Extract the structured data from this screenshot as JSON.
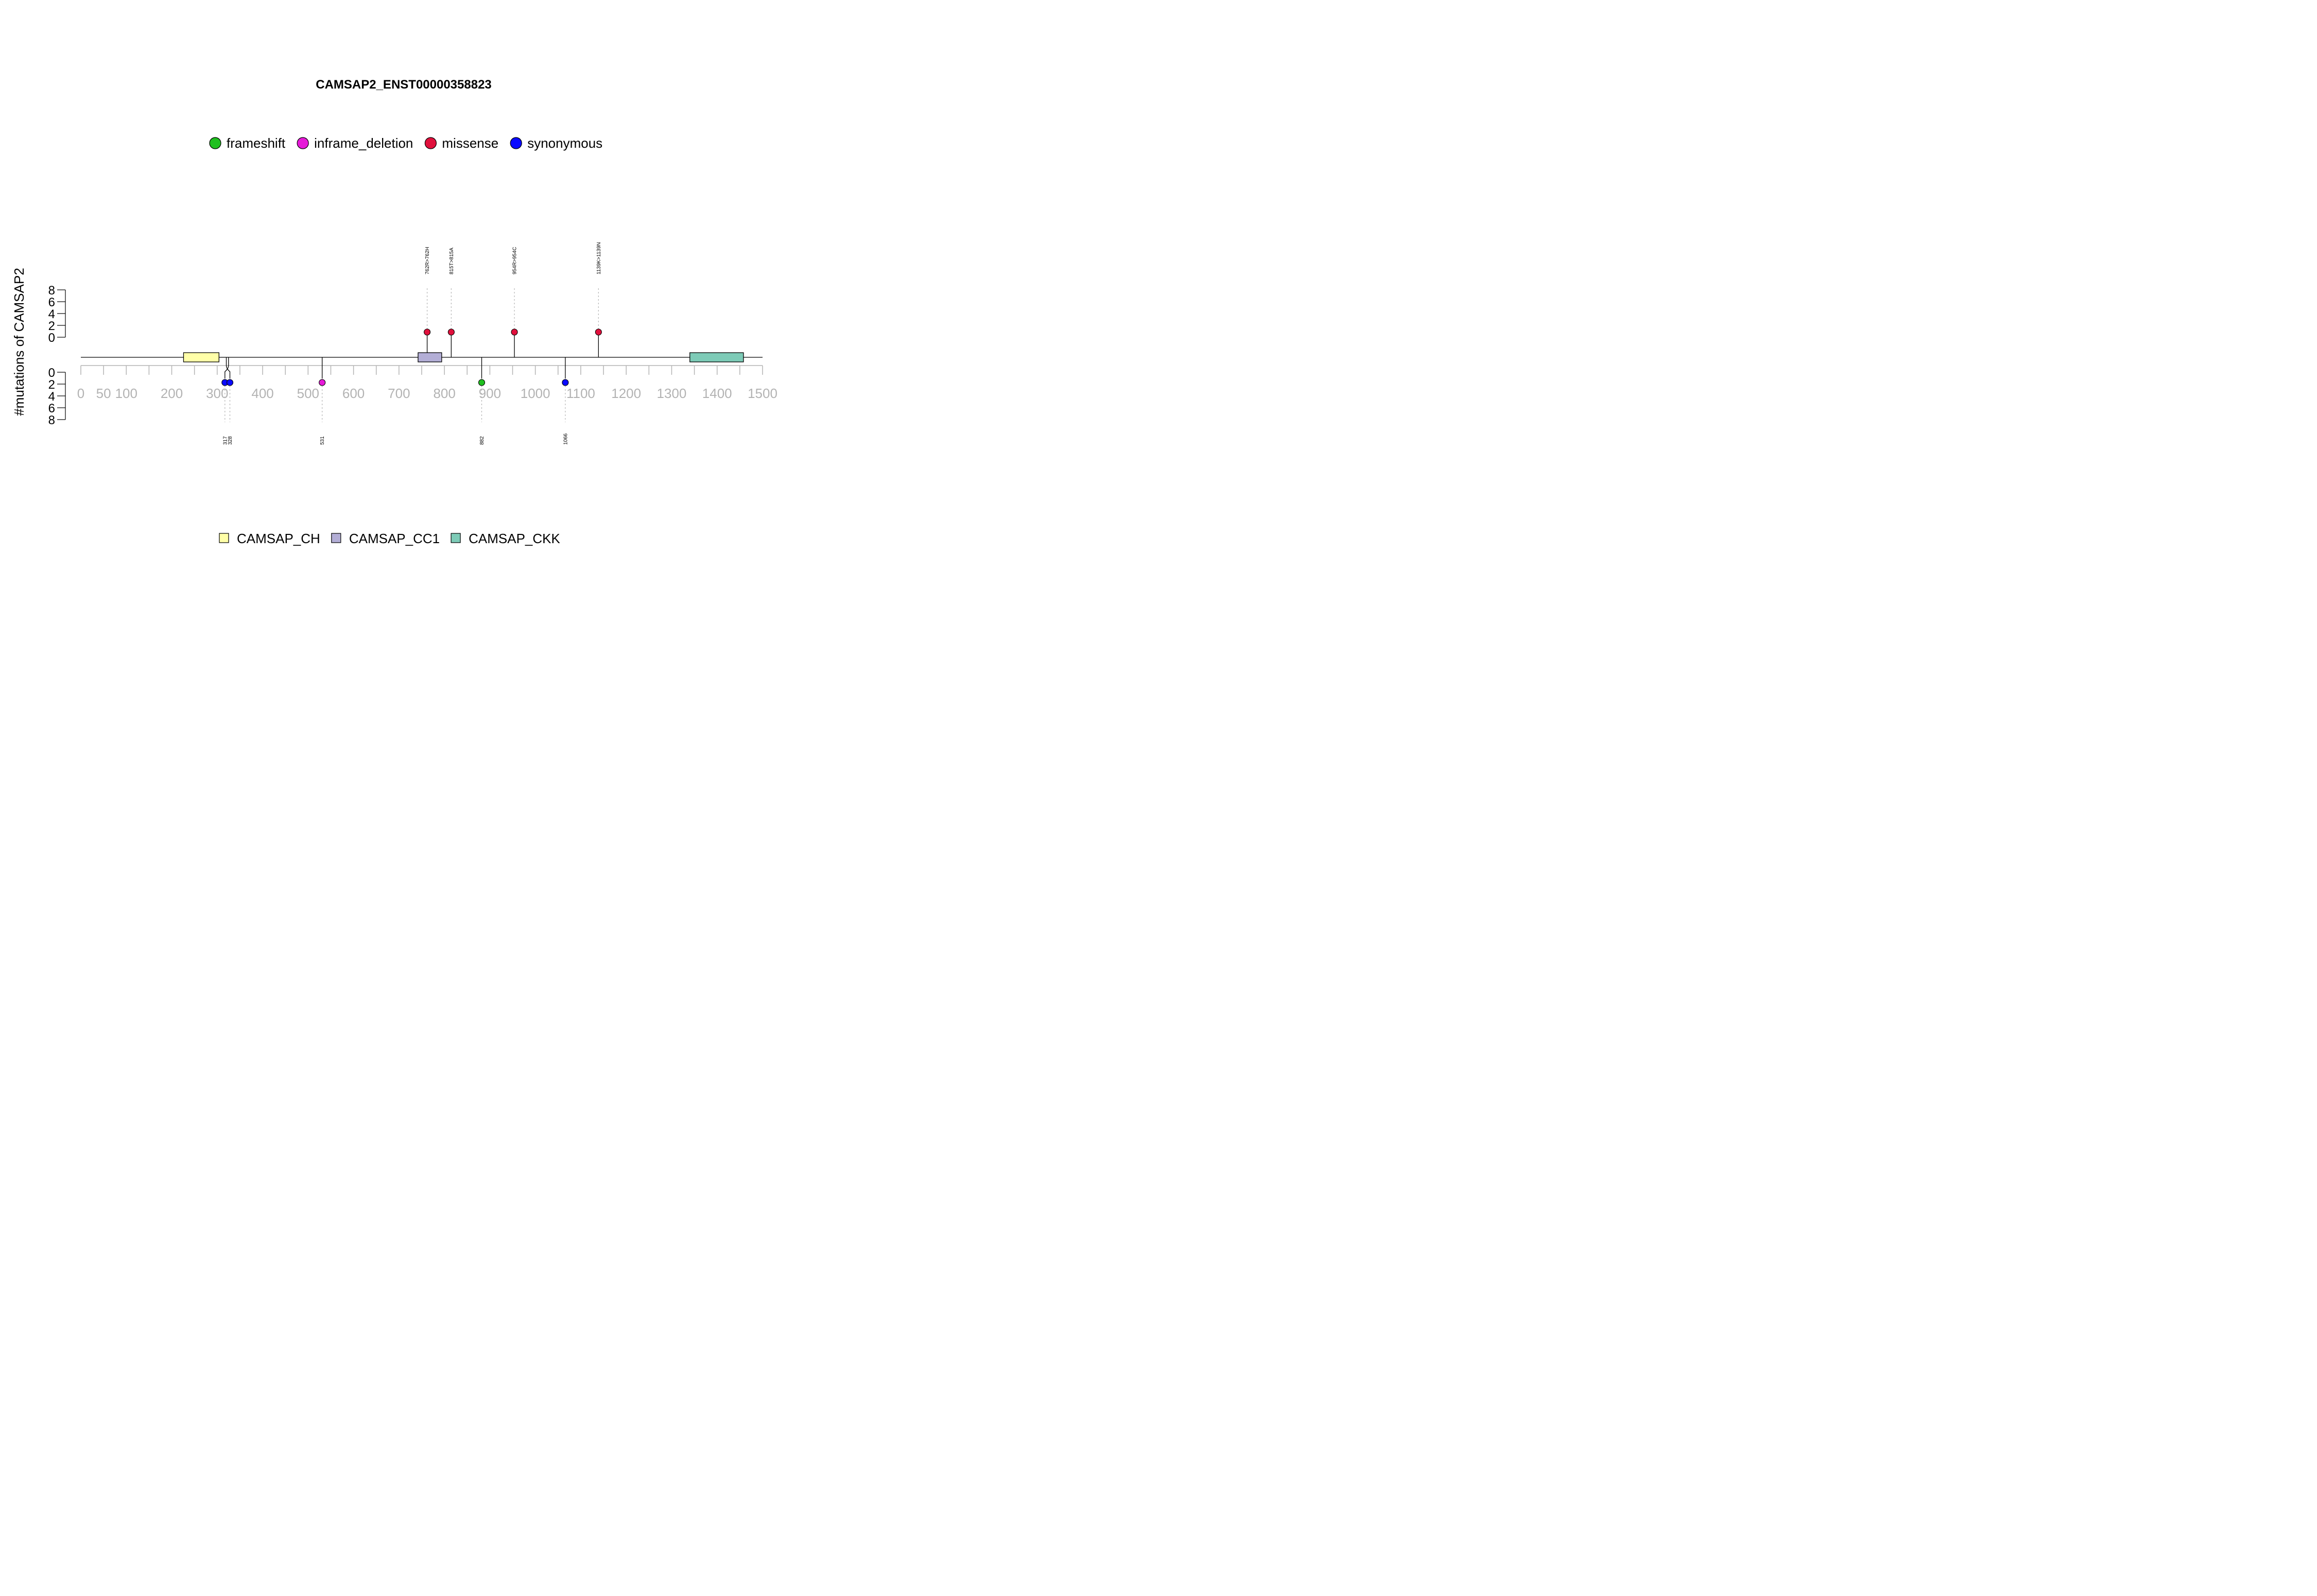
{
  "chart_data": {
    "type": "lollipop",
    "title": "CAMSAP2_ENST00000358823",
    "ylabel": "#mutations of CAMSAP2",
    "xlim": [
      0,
      1500
    ],
    "x_ticks": [
      0,
      50,
      100,
      200,
      300,
      400,
      500,
      600,
      700,
      800,
      900,
      1000,
      1100,
      1200,
      1300,
      1400,
      1500
    ],
    "y_ticks": [
      0,
      2,
      4,
      6,
      8
    ],
    "ylim": [
      0,
      8
    ],
    "mutation_legend": [
      {
        "name": "frameshift",
        "color": "#1fbf1f"
      },
      {
        "name": "inframe_deletion",
        "color": "#e61ad8"
      },
      {
        "name": "missense",
        "color": "#e0103c"
      },
      {
        "name": "synonymous",
        "color": "#0a0aff"
      }
    ],
    "domain_legend": [
      {
        "name": "CAMSAP_CH",
        "color": "#ffffa8"
      },
      {
        "name": "CAMSAP_CC1",
        "color": "#b3aed6"
      },
      {
        "name": "CAMSAP_CKK",
        "color": "#7dcbb7"
      }
    ],
    "domains": [
      {
        "name": "CAMSAP_CH",
        "start": 226,
        "end": 304
      },
      {
        "name": "CAMSAP_CC1",
        "start": 742,
        "end": 794
      },
      {
        "name": "CAMSAP_CKK",
        "start": 1340,
        "end": 1458
      }
    ],
    "mutations_top": [
      {
        "position": 762,
        "count": 1,
        "type": "missense",
        "label": "762R>762H"
      },
      {
        "position": 815,
        "count": 1,
        "type": "missense",
        "label": "815T>815A"
      },
      {
        "position": 954,
        "count": 1,
        "type": "missense",
        "label": "954R>954C"
      },
      {
        "position": 1139,
        "count": 1,
        "type": "missense",
        "label": "1139K>1139N"
      }
    ],
    "mutations_bottom": [
      {
        "position": 317,
        "count": 1,
        "type": "synonymous",
        "label": "317"
      },
      {
        "position": 328,
        "count": 1,
        "type": "synonymous",
        "label": "328"
      },
      {
        "position": 531,
        "count": 1,
        "type": "inframe_deletion",
        "label": "531"
      },
      {
        "position": 882,
        "count": 1,
        "type": "frameshift",
        "label": "882"
      },
      {
        "position": 1066,
        "count": 1,
        "type": "synonymous",
        "label": "1066"
      }
    ]
  }
}
